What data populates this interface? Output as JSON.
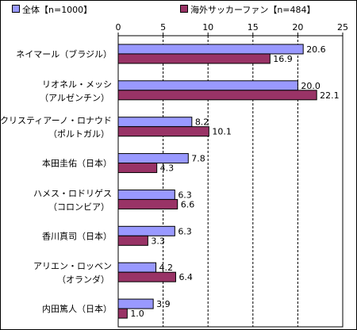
{
  "colors": {
    "series1": "#9999ff",
    "series2": "#993366",
    "grid": "#000000"
  },
  "chart_data": {
    "type": "bar",
    "orientation": "horizontal",
    "xlim": [
      0,
      25
    ],
    "ticks": [
      0,
      5,
      10,
      15,
      20,
      25
    ],
    "grid": "vertical dashed",
    "legend_position": "top",
    "categories": [
      [
        "ネイマール（ブラジル）"
      ],
      [
        "リオネル・メッシ",
        "（アルゼンチン）"
      ],
      [
        "クリスティアーノ・ロナウド",
        "（ポルトガル）"
      ],
      [
        "本田圭佑（日本）"
      ],
      [
        "ハメス・ロドリゲス",
        "（コロンビア）"
      ],
      [
        "香川真司（日本）"
      ],
      [
        "アリエン・ロッベン",
        "（オランダ）"
      ],
      [
        "内田篤人（日本）"
      ]
    ],
    "series": [
      {
        "name": "全体【n=1000】",
        "values": [
          20.6,
          20.0,
          8.2,
          7.8,
          6.3,
          6.3,
          4.2,
          3.9
        ],
        "labels": [
          "20.6",
          "20.0",
          "8.2",
          "7.8",
          "6.3",
          "6.3",
          "4.2",
          "3.9"
        ]
      },
      {
        "name": "海外サッカーファン【n=484】",
        "values": [
          16.9,
          22.1,
          10.1,
          4.3,
          6.6,
          3.3,
          6.4,
          1.0
        ],
        "labels": [
          "16.9",
          "22.1",
          "10.1",
          "4.3",
          "6.6",
          "3.3",
          "6.4",
          "1.0"
        ]
      }
    ]
  }
}
